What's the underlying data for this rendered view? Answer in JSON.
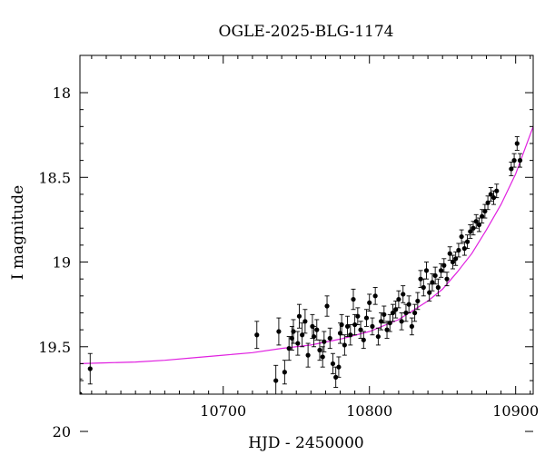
{
  "chart_data": {
    "type": "scatter",
    "title": "OGLE-2025-BLG-1174",
    "xlabel": "HJD - 2450000",
    "ylabel": "I magnitude",
    "xlim": [
      10602,
      10912
    ],
    "ylim": [
      19.78,
      17.78
    ],
    "y_inverted": true,
    "x_ticks": [
      10700,
      10800,
      10900
    ],
    "x_tick_labels": [
      "10700",
      "10800",
      "10900"
    ],
    "y_ticks": [
      18,
      18.5,
      19,
      19.5,
      20
    ],
    "y_tick_labels": [
      "18",
      "18.5",
      "19",
      "19.5",
      "20"
    ],
    "grid": false,
    "point_color": "#000000",
    "model_color": "#e020e0",
    "series": [
      {
        "kind": "points",
        "x": [
          10602,
          10609,
          10723,
          10736,
          10738,
          10742,
          10745,
          10747,
          10748,
          10751,
          10752,
          10754,
          10756,
          10758,
          10761,
          10762,
          10764,
          10766,
          10768,
          10769,
          10771,
          10773,
          10775,
          10777,
          10779,
          10780,
          10781,
          10783,
          10785,
          10787,
          10789,
          10790,
          10792,
          10794,
          10796,
          10798,
          10800,
          10802,
          10804,
          10806,
          10808,
          10810,
          10812,
          10814,
          10816,
          10818,
          10820,
          10822,
          10823,
          10825,
          10827,
          10829,
          10831,
          10833,
          10835,
          10837,
          10839,
          10841,
          10843,
          10845,
          10847,
          10849,
          10851,
          10853,
          10855,
          10857,
          10859,
          10861,
          10863,
          10865,
          10867,
          10869,
          10871,
          10873,
          10875,
          10877,
          10879,
          10881,
          10883,
          10885,
          10887,
          10897,
          10899,
          10901,
          10903
        ],
        "y": [
          19.78,
          19.63,
          19.43,
          19.7,
          19.41,
          19.65,
          19.51,
          19.45,
          19.41,
          19.48,
          19.32,
          19.43,
          19.35,
          19.55,
          19.38,
          19.44,
          19.4,
          19.52,
          19.56,
          19.47,
          19.26,
          19.45,
          19.6,
          19.68,
          19.62,
          19.42,
          19.37,
          19.49,
          19.38,
          19.43,
          19.22,
          19.37,
          19.32,
          19.4,
          19.46,
          19.33,
          19.24,
          19.38,
          19.2,
          19.44,
          19.35,
          19.31,
          19.4,
          19.36,
          19.3,
          19.28,
          19.22,
          19.35,
          19.19,
          19.3,
          19.25,
          19.38,
          19.3,
          19.23,
          19.1,
          19.15,
          19.05,
          19.18,
          19.12,
          19.08,
          19.15,
          19.05,
          19.02,
          19.1,
          18.95,
          19.0,
          18.98,
          18.93,
          18.85,
          18.92,
          18.88,
          18.82,
          18.8,
          18.76,
          18.78,
          18.73,
          18.7,
          18.65,
          18.6,
          18.62,
          18.58,
          18.45,
          18.4,
          18.3,
          18.4
        ],
        "yerr": [
          0.09,
          0.09,
          0.08,
          0.09,
          0.08,
          0.07,
          0.07,
          0.07,
          0.07,
          0.07,
          0.07,
          0.07,
          0.07,
          0.07,
          0.07,
          0.06,
          0.06,
          0.06,
          0.06,
          0.06,
          0.06,
          0.06,
          0.06,
          0.06,
          0.06,
          0.06,
          0.06,
          0.06,
          0.06,
          0.06,
          0.06,
          0.06,
          0.05,
          0.05,
          0.05,
          0.05,
          0.05,
          0.05,
          0.05,
          0.05,
          0.05,
          0.05,
          0.05,
          0.05,
          0.05,
          0.05,
          0.05,
          0.05,
          0.05,
          0.05,
          0.05,
          0.05,
          0.05,
          0.05,
          0.05,
          0.05,
          0.05,
          0.05,
          0.05,
          0.05,
          0.05,
          0.04,
          0.04,
          0.04,
          0.04,
          0.04,
          0.04,
          0.04,
          0.04,
          0.04,
          0.04,
          0.04,
          0.04,
          0.04,
          0.04,
          0.04,
          0.04,
          0.04,
          0.04,
          0.04,
          0.04,
          0.04,
          0.04,
          0.04,
          0.04
        ]
      },
      {
        "kind": "model",
        "x": [
          10602,
          10620,
          10640,
          10660,
          10680,
          10700,
          10720,
          10740,
          10760,
          10780,
          10800,
          10820,
          10840,
          10850,
          10860,
          10870,
          10880,
          10890,
          10900,
          10912
        ],
        "y": [
          19.6,
          19.595,
          19.59,
          19.58,
          19.565,
          19.55,
          19.535,
          19.51,
          19.49,
          19.455,
          19.41,
          19.34,
          19.23,
          19.16,
          19.06,
          18.95,
          18.81,
          18.66,
          18.48,
          18.2
        ]
      }
    ]
  }
}
